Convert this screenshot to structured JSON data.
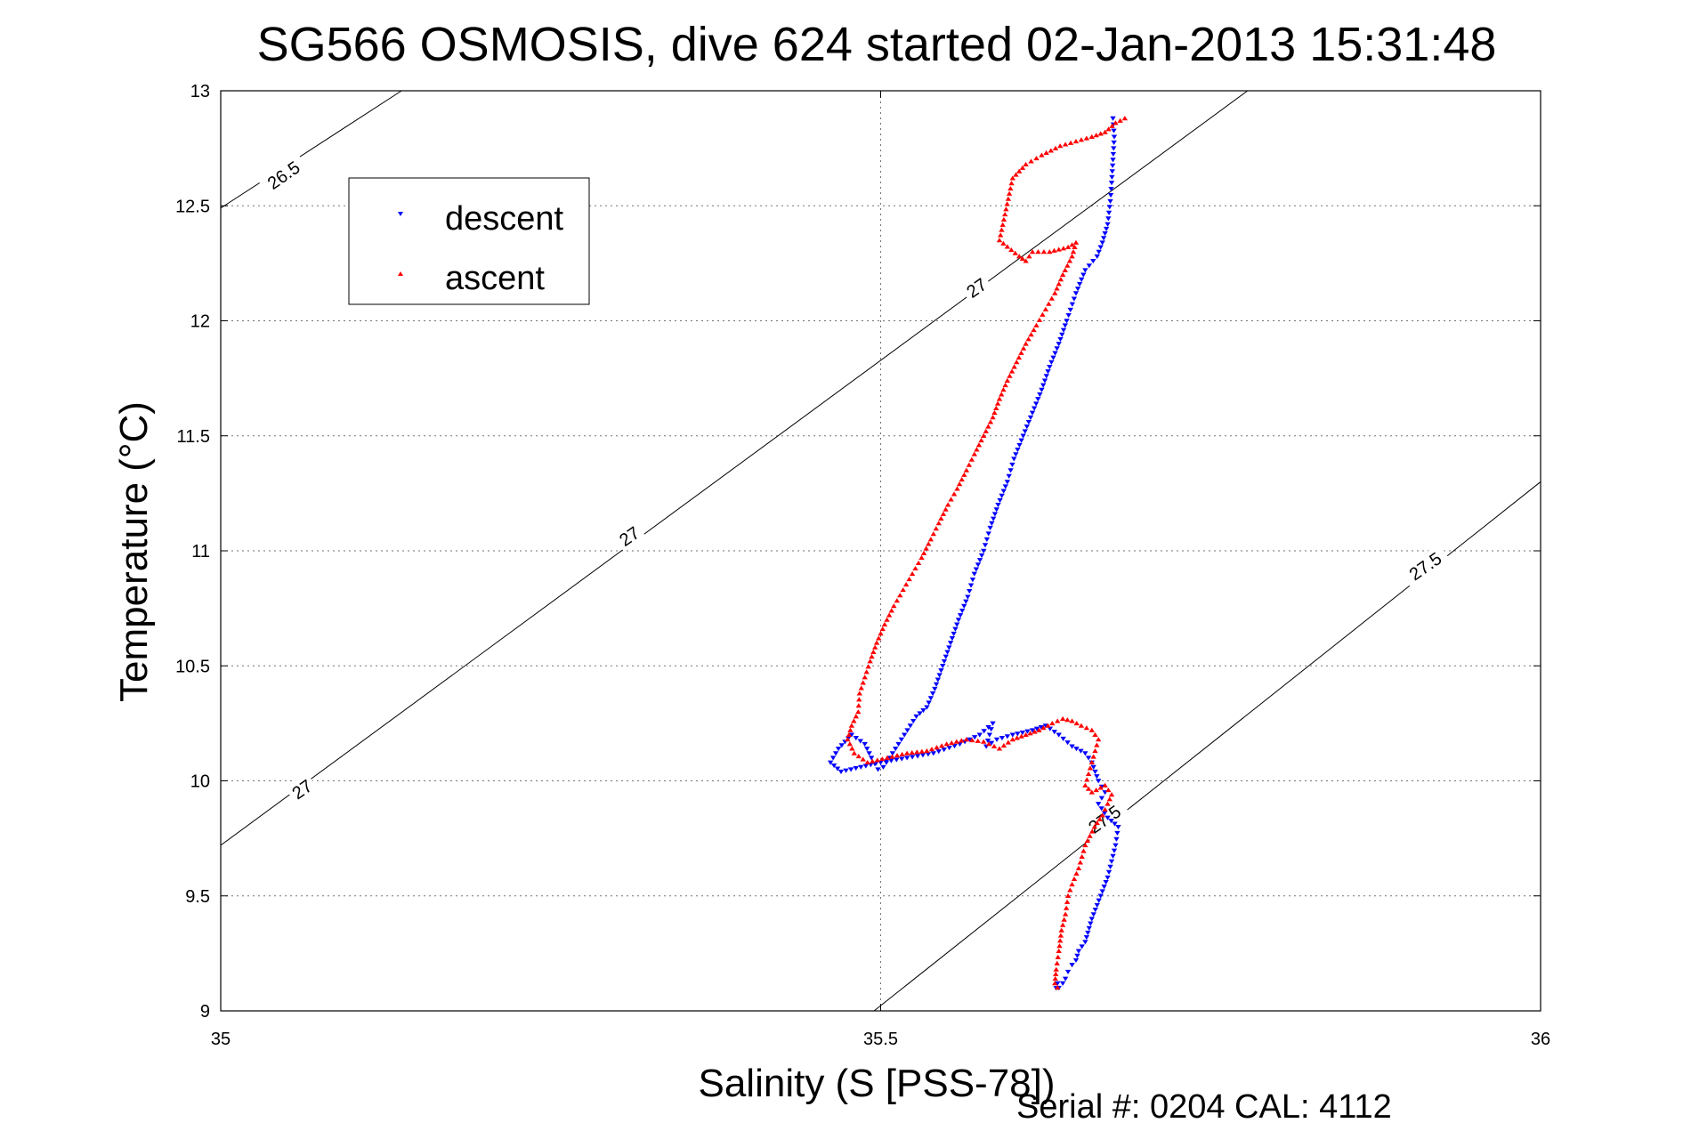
{
  "chart_data": {
    "type": "scatter",
    "title": "SG566 OSMOSIS, dive 624 started 02-Jan-2013 15:31:48",
    "xlabel": "Salinity (S [PSS-78])",
    "ylabel": "Temperature (°C)",
    "footer": "Serial #: 0204  CAL: 4112",
    "xlim": [
      35,
      36
    ],
    "ylim": [
      9,
      13
    ],
    "xticks": [
      "35",
      "35.5",
      "36"
    ],
    "xtick_values": [
      35,
      35.5,
      36
    ],
    "yticks": [
      "9",
      "9.5",
      "10",
      "10.5",
      "11",
      "11.5",
      "12",
      "12.5",
      "13"
    ],
    "ytick_values": [
      9,
      9.5,
      10,
      10.5,
      11,
      11.5,
      12,
      12.5,
      13
    ],
    "grid": true,
    "legend": {
      "placement": "upper-left"
    },
    "isopycnals": [
      {
        "label": "26.5",
        "x": [
          35.0,
          35.137
        ],
        "y": [
          12.49,
          13.0
        ]
      },
      {
        "label": "27",
        "x": [
          35.0,
          35.778
        ],
        "y": [
          9.72,
          13.0
        ]
      },
      {
        "label": "27.5",
        "x": [
          35.495,
          36.0
        ],
        "y": [
          9.0,
          11.3
        ]
      }
    ],
    "isopycnal_labels": [
      {
        "text": "26.5",
        "x": 35.048,
        "y": 12.63
      },
      {
        "text": "27",
        "x": 35.062,
        "y": 9.96
      },
      {
        "text": "27",
        "x": 35.31,
        "y": 11.06
      },
      {
        "text": "27",
        "x": 35.573,
        "y": 12.14
      },
      {
        "text": "27.5",
        "x": 35.67,
        "y": 9.83
      },
      {
        "text": "27.5",
        "x": 35.913,
        "y": 10.93
      }
    ],
    "series": [
      {
        "name": "descent",
        "color": "#0000ff",
        "marker": "triangle-down",
        "x": [
          35.676,
          35.677,
          35.676,
          35.675,
          35.674,
          35.672,
          35.668,
          35.664,
          35.655,
          35.648,
          35.641,
          35.635,
          35.628,
          35.622,
          35.615,
          35.608,
          35.601,
          35.596,
          35.589,
          35.583,
          35.578,
          35.571,
          35.566,
          35.559,
          35.553,
          35.547,
          35.541,
          35.535,
          35.527,
          35.518,
          35.509,
          35.502,
          35.498,
          35.493,
          35.488,
          35.478,
          35.468,
          35.462,
          35.47,
          35.485,
          35.5,
          35.52,
          35.54,
          35.56,
          35.575,
          35.585,
          35.58,
          35.588,
          35.6,
          35.615,
          35.625,
          35.635,
          35.645,
          35.655,
          35.66,
          35.665,
          35.67,
          35.665,
          35.672,
          35.68,
          35.678,
          35.675,
          35.672,
          35.668,
          35.664,
          35.66,
          35.658,
          35.655,
          35.65,
          35.648,
          35.645,
          35.642,
          35.64,
          35.638,
          35.635,
          35.634,
          35.633
        ],
        "y": [
          12.88,
          12.8,
          12.7,
          12.6,
          12.52,
          12.42,
          12.34,
          12.28,
          12.22,
          12.12,
          12.0,
          11.9,
          11.8,
          11.7,
          11.6,
          11.5,
          11.4,
          11.3,
          11.2,
          11.1,
          11.0,
          10.9,
          10.8,
          10.7,
          10.6,
          10.5,
          10.4,
          10.32,
          10.28,
          10.2,
          10.12,
          10.06,
          10.05,
          10.1,
          10.16,
          10.2,
          10.14,
          10.08,
          10.04,
          10.06,
          10.08,
          10.1,
          10.12,
          10.16,
          10.2,
          10.25,
          10.15,
          10.18,
          10.2,
          10.22,
          10.24,
          10.2,
          10.15,
          10.12,
          10.08,
          10.0,
          9.95,
          9.9,
          9.84,
          9.8,
          9.72,
          9.65,
          9.58,
          9.52,
          9.46,
          9.4,
          9.36,
          9.3,
          9.26,
          9.22,
          9.2,
          9.17,
          9.14,
          9.12,
          9.1,
          9.12,
          9.1
        ]
      },
      {
        "name": "ascent",
        "color": "#ff0000",
        "marker": "triangle-up",
        "x": [
          35.685,
          35.678,
          35.67,
          35.66,
          35.648,
          35.636,
          35.622,
          35.61,
          35.6,
          35.59,
          35.605,
          35.61,
          35.615,
          35.628,
          35.642,
          35.648,
          35.645,
          35.638,
          35.632,
          35.625,
          35.618,
          35.61,
          35.603,
          35.596,
          35.59,
          35.585,
          35.578,
          35.571,
          35.565,
          35.558,
          35.551,
          35.544,
          35.538,
          35.531,
          35.524,
          35.517,
          35.51,
          35.503,
          35.497,
          35.492,
          35.488,
          35.484,
          35.483,
          35.478,
          35.475,
          35.48,
          35.49,
          35.505,
          35.52,
          35.535,
          35.55,
          35.565,
          35.578,
          35.59,
          35.6,
          35.61,
          35.62,
          35.63,
          35.638,
          35.645,
          35.652,
          35.66,
          35.665,
          35.66,
          35.655,
          35.66,
          35.67,
          35.675,
          35.672,
          35.668,
          35.662,
          35.655,
          35.65,
          35.645,
          35.642,
          35.64,
          35.637,
          35.635,
          35.633,
          35.632,
          35.634
        ],
        "y": [
          12.88,
          12.86,
          12.82,
          12.8,
          12.78,
          12.76,
          12.72,
          12.68,
          12.62,
          12.35,
          12.28,
          12.26,
          12.3,
          12.3,
          12.32,
          12.34,
          12.28,
          12.2,
          12.12,
          12.05,
          11.98,
          11.9,
          11.82,
          11.74,
          11.66,
          11.58,
          11.5,
          11.42,
          11.35,
          11.27,
          11.2,
          11.12,
          11.05,
          10.97,
          10.9,
          10.83,
          10.76,
          10.68,
          10.6,
          10.52,
          10.45,
          10.38,
          10.3,
          10.24,
          10.18,
          10.12,
          10.08,
          10.1,
          10.12,
          10.13,
          10.16,
          10.18,
          10.17,
          10.14,
          10.18,
          10.2,
          10.22,
          10.25,
          10.27,
          10.26,
          10.24,
          10.22,
          10.18,
          10.08,
          9.98,
          9.95,
          9.98,
          9.94,
          9.9,
          9.85,
          9.8,
          9.72,
          9.62,
          9.55,
          9.5,
          9.42,
          9.35,
          9.26,
          9.18,
          9.12,
          9.1
        ]
      }
    ]
  }
}
